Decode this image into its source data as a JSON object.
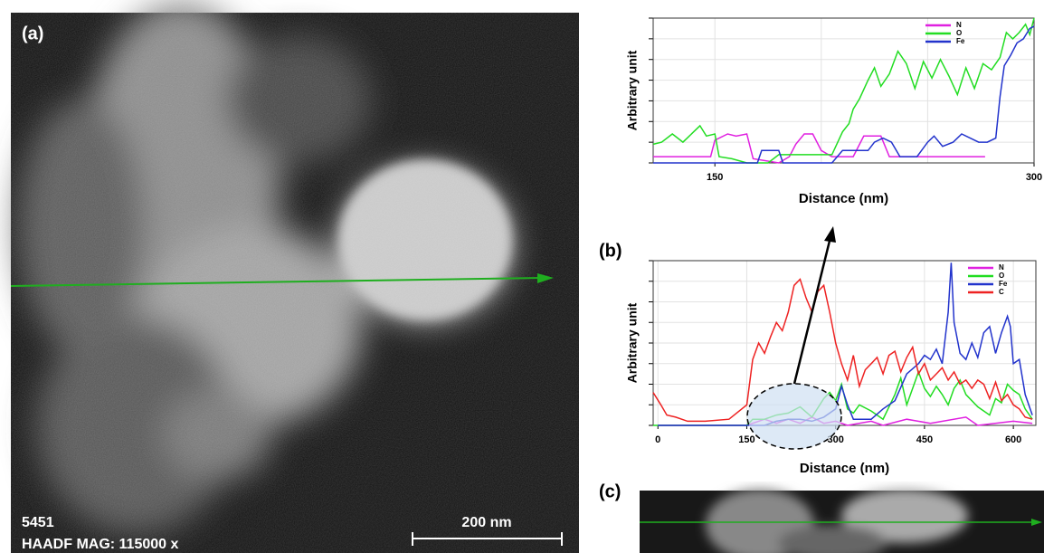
{
  "panels": {
    "a_label": "(a)",
    "sample_id": "5451",
    "mag_text": "HAADF  MAG: 115000 x",
    "scale_bar": "200 nm",
    "b_label": "(b)",
    "c_label": "(c)"
  },
  "chart_data": [
    {
      "type": "line",
      "xlabel": "Distance (nm)",
      "ylabel": "Arbitrary unit",
      "xlim": [
        121,
        300
      ],
      "xticks": [
        150,
        300
      ],
      "x_minor_grid": [
        200,
        250
      ],
      "ylim": [
        0,
        7
      ],
      "yticks": [
        0,
        1,
        2,
        3,
        4,
        5,
        6,
        7
      ],
      "grid": true,
      "legend": "upper right",
      "series": [
        {
          "name": "N",
          "color": "#e020e0",
          "x": [
            121,
            130,
            140,
            148,
            150,
            156,
            160,
            165,
            168,
            180,
            185,
            188,
            192,
            196,
            200,
            205,
            215,
            220,
            224,
            228,
            232,
            240,
            260,
            277
          ],
          "values": [
            0.3,
            0.3,
            0.3,
            0.3,
            1.1,
            1.4,
            1.3,
            1.4,
            0.2,
            0,
            0.3,
            0.9,
            1.4,
            1.4,
            0.6,
            0.3,
            0.3,
            1.3,
            1.3,
            1.3,
            0.3,
            0.3,
            0.3,
            0.3
          ]
        },
        {
          "name": "O",
          "color": "#22dd22",
          "x": [
            121,
            125,
            130,
            135,
            140,
            143,
            146,
            150,
            152,
            158,
            165,
            175,
            180,
            185,
            205,
            210,
            213,
            215,
            218,
            222,
            225,
            228,
            232,
            236,
            240,
            244,
            248,
            252,
            256,
            260,
            264,
            268,
            272,
            276,
            280,
            284,
            287,
            290,
            293,
            296,
            298,
            300
          ],
          "values": [
            0.9,
            1.0,
            1.4,
            1.0,
            1.5,
            1.8,
            1.3,
            1.4,
            0.3,
            0.2,
            0,
            0,
            0.4,
            0.4,
            0.4,
            1.5,
            1.9,
            2.6,
            3.1,
            4.0,
            4.6,
            3.7,
            4.3,
            5.4,
            4.8,
            3.6,
            4.9,
            4.1,
            5.0,
            4.2,
            3.3,
            4.6,
            3.6,
            4.8,
            4.5,
            5.1,
            6.3,
            6.0,
            6.3,
            6.7,
            6.2,
            7.0
          ]
        },
        {
          "name": "Fe",
          "color": "#2233cc",
          "x": [
            121,
            150,
            170,
            172,
            180,
            182,
            205,
            210,
            222,
            225,
            229,
            233,
            237,
            245,
            250,
            253,
            257,
            262,
            266,
            270,
            274,
            278,
            282,
            284,
            286,
            289,
            292,
            295,
            298,
            300
          ],
          "values": [
            0,
            0,
            0,
            0.6,
            0.6,
            0,
            0,
            0.6,
            0.6,
            1.0,
            1.2,
            1.0,
            0.3,
            0.3,
            1.0,
            1.3,
            0.8,
            1.0,
            1.4,
            1.2,
            1.0,
            1.0,
            1.2,
            3.2,
            4.7,
            5.2,
            5.8,
            6.0,
            6.5,
            6.6
          ]
        }
      ]
    },
    {
      "type": "line",
      "xlabel": "Distance (nm)",
      "ylabel": "Arbitrary unit",
      "xlim": [
        -8,
        638
      ],
      "xticks": [
        0,
        150,
        300,
        450,
        600
      ],
      "ylim": [
        0,
        8
      ],
      "yticks": [
        0,
        1,
        2,
        3,
        4,
        5,
        6,
        7,
        8
      ],
      "grid": true,
      "legend": "upper right",
      "series": [
        {
          "name": "N",
          "color": "#e020e0",
          "x": [
            0,
            150,
            180,
            200,
            220,
            240,
            260,
            280,
            300,
            320,
            360,
            380,
            420,
            460,
            520,
            540,
            600,
            632
          ],
          "values": [
            0,
            0,
            0.3,
            0.1,
            0.3,
            0.1,
            0.4,
            0.1,
            0.2,
            0,
            0.2,
            0,
            0.3,
            0.1,
            0.4,
            0,
            0.2,
            0.1
          ]
        },
        {
          "name": "O",
          "color": "#22dd22",
          "x": [
            -8,
            150,
            160,
            180,
            200,
            220,
            240,
            260,
            280,
            290,
            300,
            310,
            320,
            330,
            340,
            360,
            380,
            400,
            410,
            420,
            430,
            440,
            450,
            460,
            470,
            480,
            490,
            500,
            510,
            520,
            540,
            560,
            570,
            580,
            590,
            600,
            610,
            620,
            632
          ],
          "values": [
            0,
            0,
            0.3,
            0.3,
            0.5,
            0.6,
            0.9,
            0.4,
            1.3,
            1.6,
            1.2,
            2.0,
            0.8,
            0.6,
            1.0,
            0.7,
            0.3,
            1.5,
            2.3,
            1.0,
            1.8,
            2.6,
            1.8,
            1.4,
            1.9,
            1.5,
            1.0,
            1.8,
            2.2,
            1.5,
            0.9,
            0.5,
            1.3,
            1.1,
            2.0,
            1.7,
            1.5,
            0.8,
            0.3
          ]
        },
        {
          "name": "Fe",
          "color": "#2233cc",
          "x": [
            0,
            180,
            200,
            220,
            240,
            260,
            280,
            300,
            310,
            320,
            330,
            360,
            380,
            400,
            420,
            440,
            450,
            460,
            470,
            480,
            490,
            495,
            500,
            510,
            520,
            530,
            540,
            550,
            560,
            570,
            580,
            590,
            595,
            600,
            610,
            620,
            632
          ],
          "values": [
            0,
            0,
            0.2,
            0.3,
            0.3,
            0.2,
            0.4,
            0.8,
            1.9,
            1.0,
            0.3,
            0.3,
            0.8,
            1.2,
            2.5,
            3.0,
            3.4,
            3.2,
            3.7,
            3.0,
            5.5,
            7.9,
            5.0,
            3.5,
            3.2,
            4.0,
            3.3,
            4.5,
            4.8,
            3.5,
            4.5,
            5.3,
            4.8,
            3.0,
            3.2,
            1.5,
            0.5
          ]
        },
        {
          "name": "C",
          "color": "#ee2222",
          "x": [
            -8,
            5,
            15,
            30,
            50,
            80,
            120,
            150,
            160,
            170,
            180,
            190,
            200,
            210,
            220,
            230,
            240,
            250,
            260,
            270,
            280,
            290,
            300,
            310,
            320,
            330,
            340,
            350,
            360,
            370,
            380,
            390,
            400,
            410,
            420,
            430,
            440,
            450,
            460,
            470,
            480,
            490,
            500,
            510,
            520,
            530,
            540,
            550,
            560,
            570,
            580,
            590,
            600,
            610,
            620,
            632
          ],
          "values": [
            1.6,
            1.0,
            0.5,
            0.4,
            0.2,
            0.2,
            0.3,
            1.0,
            3.2,
            4.0,
            3.5,
            4.3,
            5.0,
            4.6,
            5.5,
            6.8,
            7.1,
            6.2,
            5.5,
            6.5,
            6.8,
            5.5,
            4.0,
            3.0,
            2.2,
            3.4,
            1.9,
            2.7,
            3.0,
            3.3,
            2.5,
            3.4,
            3.6,
            2.6,
            3.3,
            3.8,
            2.5,
            3.0,
            2.2,
            2.5,
            2.8,
            2.2,
            2.6,
            2.0,
            2.2,
            1.8,
            2.2,
            2.0,
            1.3,
            2.1,
            1.2,
            1.5,
            1.0,
            0.8,
            0.4,
            0.3
          ]
        }
      ]
    }
  ]
}
